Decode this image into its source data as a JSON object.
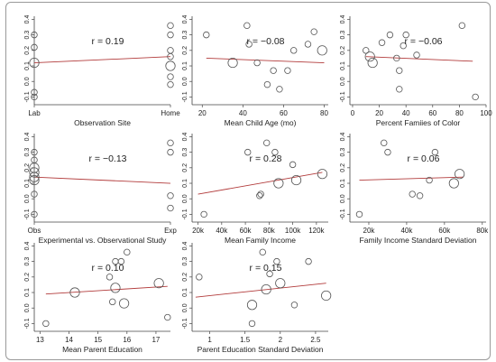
{
  "chart_data": [
    {
      "type": "scatter",
      "xlabel": "Observation Site",
      "r_label": "r = 0.19",
      "xlim": [
        0,
        1
      ],
      "xticks": [
        0,
        1
      ],
      "xticklabels": [
        "Lab",
        "Home"
      ],
      "ylim": [
        -0.15,
        0.42
      ],
      "yticks": [
        -0.1,
        0.0,
        0.1,
        0.2,
        0.3,
        0.4
      ],
      "yticklabels": [
        "-0.1",
        "0.0",
        "0.1",
        "0.2",
        "0.3",
        "0.4"
      ],
      "points": [
        {
          "x": 0,
          "y": 0.3,
          "s": 1
        },
        {
          "x": 0,
          "y": 0.22,
          "s": 1
        },
        {
          "x": 0,
          "y": 0.12,
          "s": 2
        },
        {
          "x": 0,
          "y": -0.07,
          "s": 1
        },
        {
          "x": 0,
          "y": -0.1,
          "s": 1
        },
        {
          "x": 1,
          "y": 0.36,
          "s": 1
        },
        {
          "x": 1,
          "y": 0.3,
          "s": 1
        },
        {
          "x": 1,
          "y": 0.2,
          "s": 1
        },
        {
          "x": 1,
          "y": 0.16,
          "s": 1
        },
        {
          "x": 1,
          "y": 0.1,
          "s": 2
        },
        {
          "x": 1,
          "y": 0.03,
          "s": 1
        },
        {
          "x": 1,
          "y": -0.02,
          "s": 1
        }
      ],
      "fit": [
        [
          0,
          0.12
        ],
        [
          1,
          0.16
        ]
      ]
    },
    {
      "type": "scatter",
      "xlabel": "Mean Child Age (mo)",
      "r_label": "r = −0.08",
      "xlim": [
        15,
        82
      ],
      "xticks": [
        20,
        40,
        60,
        80
      ],
      "xticklabels": [
        "20",
        "40",
        "60",
        "80"
      ],
      "ylim": [
        -0.15,
        0.42
      ],
      "yticks": [
        -0.1,
        0.0,
        0.1,
        0.2,
        0.3,
        0.4
      ],
      "yticklabels": [
        "-0.1",
        "0.0",
        "0.1",
        "0.2",
        "0.3",
        "0.4"
      ],
      "points": [
        {
          "x": 22,
          "y": 0.3,
          "s": 1
        },
        {
          "x": 35,
          "y": 0.12,
          "s": 2
        },
        {
          "x": 42,
          "y": 0.36,
          "s": 1
        },
        {
          "x": 43,
          "y": 0.24,
          "s": 1
        },
        {
          "x": 47,
          "y": 0.12,
          "s": 1
        },
        {
          "x": 52,
          "y": -0.02,
          "s": 1
        },
        {
          "x": 55,
          "y": 0.07,
          "s": 1
        },
        {
          "x": 58,
          "y": -0.05,
          "s": 1
        },
        {
          "x": 62,
          "y": 0.07,
          "s": 1
        },
        {
          "x": 65,
          "y": 0.2,
          "s": 1
        },
        {
          "x": 72,
          "y": 0.24,
          "s": 1
        },
        {
          "x": 75,
          "y": 0.32,
          "s": 1
        },
        {
          "x": 79,
          "y": 0.2,
          "s": 2
        }
      ],
      "fit": [
        [
          22,
          0.15
        ],
        [
          80,
          0.12
        ]
      ]
    },
    {
      "type": "scatter",
      "xlabel": "Percent Famiies of Color",
      "r_label": "r = −0.06",
      "xlim": [
        -2,
        100
      ],
      "xticks": [
        0,
        20,
        40,
        60,
        80,
        100
      ],
      "xticklabels": [
        "0",
        "20",
        "40",
        "60",
        "80",
        "100"
      ],
      "ylim": [
        -0.15,
        0.42
      ],
      "yticks": [
        -0.1,
        0.0,
        0.1,
        0.2,
        0.3,
        0.4
      ],
      "yticklabels": [
        "-0.1",
        "0.0",
        "0.1",
        "0.2",
        "0.3",
        "0.4"
      ],
      "points": [
        {
          "x": 10,
          "y": 0.2,
          "s": 1
        },
        {
          "x": 13,
          "y": 0.16,
          "s": 2
        },
        {
          "x": 15,
          "y": 0.12,
          "s": 2
        },
        {
          "x": 22,
          "y": 0.25,
          "s": 1
        },
        {
          "x": 28,
          "y": 0.3,
          "s": 1
        },
        {
          "x": 33,
          "y": 0.15,
          "s": 1
        },
        {
          "x": 35,
          "y": 0.07,
          "s": 1
        },
        {
          "x": 38,
          "y": 0.23,
          "s": 1
        },
        {
          "x": 40,
          "y": 0.3,
          "s": 1
        },
        {
          "x": 48,
          "y": 0.17,
          "s": 1
        },
        {
          "x": 35,
          "y": -0.05,
          "s": 1
        },
        {
          "x": 82,
          "y": 0.36,
          "s": 1
        },
        {
          "x": 92,
          "y": -0.1,
          "s": 1
        }
      ],
      "fit": [
        [
          10,
          0.16
        ],
        [
          90,
          0.13
        ]
      ]
    },
    {
      "type": "scatter",
      "xlabel": "Experimental vs. Observational Study",
      "r_label": "r = −0.13",
      "xlim": [
        0,
        1
      ],
      "xticks": [
        0,
        1
      ],
      "xticklabels": [
        "Obs",
        "Exp"
      ],
      "ylim": [
        -0.15,
        0.42
      ],
      "yticks": [
        -0.1,
        0.0,
        0.1,
        0.2,
        0.3,
        0.4
      ],
      "yticklabels": [
        "-0.1",
        "0.0",
        "0.1",
        "0.2",
        "0.3",
        "0.4"
      ],
      "points": [
        {
          "x": 0,
          "y": 0.3,
          "s": 1
        },
        {
          "x": 0,
          "y": 0.25,
          "s": 1
        },
        {
          "x": 0,
          "y": 0.2,
          "s": 2
        },
        {
          "x": 0,
          "y": 0.17,
          "s": 2
        },
        {
          "x": 0,
          "y": 0.14,
          "s": 2
        },
        {
          "x": 0,
          "y": 0.12,
          "s": 2
        },
        {
          "x": 0,
          "y": 0.03,
          "s": 1
        },
        {
          "x": 0,
          "y": -0.1,
          "s": 1
        },
        {
          "x": 1,
          "y": 0.36,
          "s": 1
        },
        {
          "x": 1,
          "y": 0.3,
          "s": 1
        },
        {
          "x": 1,
          "y": 0.02,
          "s": 1
        },
        {
          "x": 1,
          "y": -0.06,
          "s": 1
        }
      ],
      "fit": [
        [
          0,
          0.14
        ],
        [
          1,
          0.1
        ]
      ]
    },
    {
      "type": "scatter",
      "xlabel": "Mean Family Income",
      "r_label": "r = 0.28",
      "xlim": [
        15000,
        130000
      ],
      "xticks": [
        20000,
        40000,
        60000,
        80000,
        100000,
        120000
      ],
      "xticklabels": [
        "20k",
        "40k",
        "60k",
        "80k",
        "100k",
        "120k"
      ],
      "ylim": [
        -0.15,
        0.42
      ],
      "yticks": [
        -0.1,
        0.0,
        0.1,
        0.2,
        0.3,
        0.4
      ],
      "yticklabels": [
        "-0.1",
        "0.0",
        "0.1",
        "0.2",
        "0.3",
        "0.4"
      ],
      "points": [
        {
          "x": 25000,
          "y": -0.1,
          "s": 1
        },
        {
          "x": 62000,
          "y": 0.3,
          "s": 1
        },
        {
          "x": 72000,
          "y": 0.02,
          "s": 1
        },
        {
          "x": 73000,
          "y": 0.03,
          "s": 1
        },
        {
          "x": 78000,
          "y": 0.36,
          "s": 1
        },
        {
          "x": 85000,
          "y": 0.3,
          "s": 1
        },
        {
          "x": 88000,
          "y": 0.1,
          "s": 2
        },
        {
          "x": 100000,
          "y": 0.22,
          "s": 1
        },
        {
          "x": 103000,
          "y": 0.12,
          "s": 2
        },
        {
          "x": 125000,
          "y": 0.16,
          "s": 2
        }
      ],
      "fit": [
        [
          20000,
          0.03
        ],
        [
          125000,
          0.17
        ]
      ]
    },
    {
      "type": "scatter",
      "xlabel": "Family Income Standard Deviation",
      "r_label": "r = 0.06",
      "xlim": [
        10000,
        82000
      ],
      "xticks": [
        20000,
        40000,
        60000,
        80000
      ],
      "xticklabels": [
        "20k",
        "40k",
        "60k",
        "80k"
      ],
      "ylim": [
        -0.15,
        0.42
      ],
      "yticks": [
        -0.1,
        0.0,
        0.1,
        0.2,
        0.3,
        0.4
      ],
      "yticklabels": [
        "-0.1",
        "0.0",
        "0.1",
        "0.2",
        "0.3",
        "0.4"
      ],
      "points": [
        {
          "x": 15000,
          "y": -0.1,
          "s": 1
        },
        {
          "x": 28000,
          "y": 0.36,
          "s": 1
        },
        {
          "x": 30000,
          "y": 0.3,
          "s": 1
        },
        {
          "x": 43000,
          "y": 0.03,
          "s": 1
        },
        {
          "x": 47000,
          "y": 0.02,
          "s": 1
        },
        {
          "x": 52000,
          "y": 0.12,
          "s": 1
        },
        {
          "x": 55000,
          "y": 0.3,
          "s": 1
        },
        {
          "x": 65000,
          "y": 0.1,
          "s": 2
        },
        {
          "x": 68000,
          "y": 0.16,
          "s": 2
        }
      ],
      "fit": [
        [
          15000,
          0.12
        ],
        [
          70000,
          0.14
        ]
      ]
    },
    {
      "type": "scatter",
      "xlabel": "Mean Parent Education",
      "r_label": "r = 0.10",
      "xlim": [
        12.8,
        17.5
      ],
      "xticks": [
        13,
        14,
        15,
        16,
        17
      ],
      "xticklabels": [
        "13",
        "14",
        "15",
        "16",
        "17"
      ],
      "ylim": [
        -0.15,
        0.42
      ],
      "yticks": [
        -0.1,
        0.0,
        0.1,
        0.2,
        0.3,
        0.4
      ],
      "yticklabels": [
        "-0.1",
        "0.0",
        "0.1",
        "0.2",
        "0.3",
        "0.4"
      ],
      "points": [
        {
          "x": 13.2,
          "y": -0.1,
          "s": 1
        },
        {
          "x": 14.2,
          "y": 0.1,
          "s": 2
        },
        {
          "x": 15.4,
          "y": 0.2,
          "s": 1
        },
        {
          "x": 15.5,
          "y": 0.04,
          "s": 1
        },
        {
          "x": 15.6,
          "y": 0.3,
          "s": 1
        },
        {
          "x": 15.6,
          "y": 0.13,
          "s": 2
        },
        {
          "x": 15.8,
          "y": 0.3,
          "s": 1
        },
        {
          "x": 15.9,
          "y": 0.03,
          "s": 2
        },
        {
          "x": 16.0,
          "y": 0.36,
          "s": 1
        },
        {
          "x": 17.1,
          "y": 0.16,
          "s": 2
        },
        {
          "x": 17.4,
          "y": -0.06,
          "s": 1
        }
      ],
      "fit": [
        [
          13.2,
          0.09
        ],
        [
          17.4,
          0.14
        ]
      ]
    },
    {
      "type": "scatter",
      "xlabel": "Parent Education Standard Deviation",
      "r_label": "r = 0.15",
      "xlim": [
        0.75,
        2.68
      ],
      "xticks": [
        1,
        1.5,
        2,
        2.5
      ],
      "xticklabels": [
        "1",
        "1.5",
        "2",
        "2.5"
      ],
      "ylim": [
        -0.15,
        0.42
      ],
      "yticks": [
        -0.1,
        0.0,
        0.1,
        0.2,
        0.3,
        0.4
      ],
      "yticklabels": [
        "-0.1",
        "0.0",
        "0.1",
        "0.2",
        "0.3",
        "0.4"
      ],
      "points": [
        {
          "x": 0.85,
          "y": 0.2,
          "s": 1
        },
        {
          "x": 1.6,
          "y": -0.1,
          "s": 1
        },
        {
          "x": 1.6,
          "y": 0.02,
          "s": 2
        },
        {
          "x": 1.75,
          "y": 0.36,
          "s": 1
        },
        {
          "x": 1.8,
          "y": 0.12,
          "s": 2
        },
        {
          "x": 1.85,
          "y": 0.22,
          "s": 1
        },
        {
          "x": 1.95,
          "y": 0.3,
          "s": 1
        },
        {
          "x": 2.0,
          "y": 0.16,
          "s": 2
        },
        {
          "x": 2.2,
          "y": 0.02,
          "s": 1
        },
        {
          "x": 2.4,
          "y": 0.3,
          "s": 1
        },
        {
          "x": 2.65,
          "y": 0.08,
          "s": 2
        }
      ],
      "fit": [
        [
          0.8,
          0.07
        ],
        [
          2.65,
          0.16
        ]
      ]
    }
  ]
}
